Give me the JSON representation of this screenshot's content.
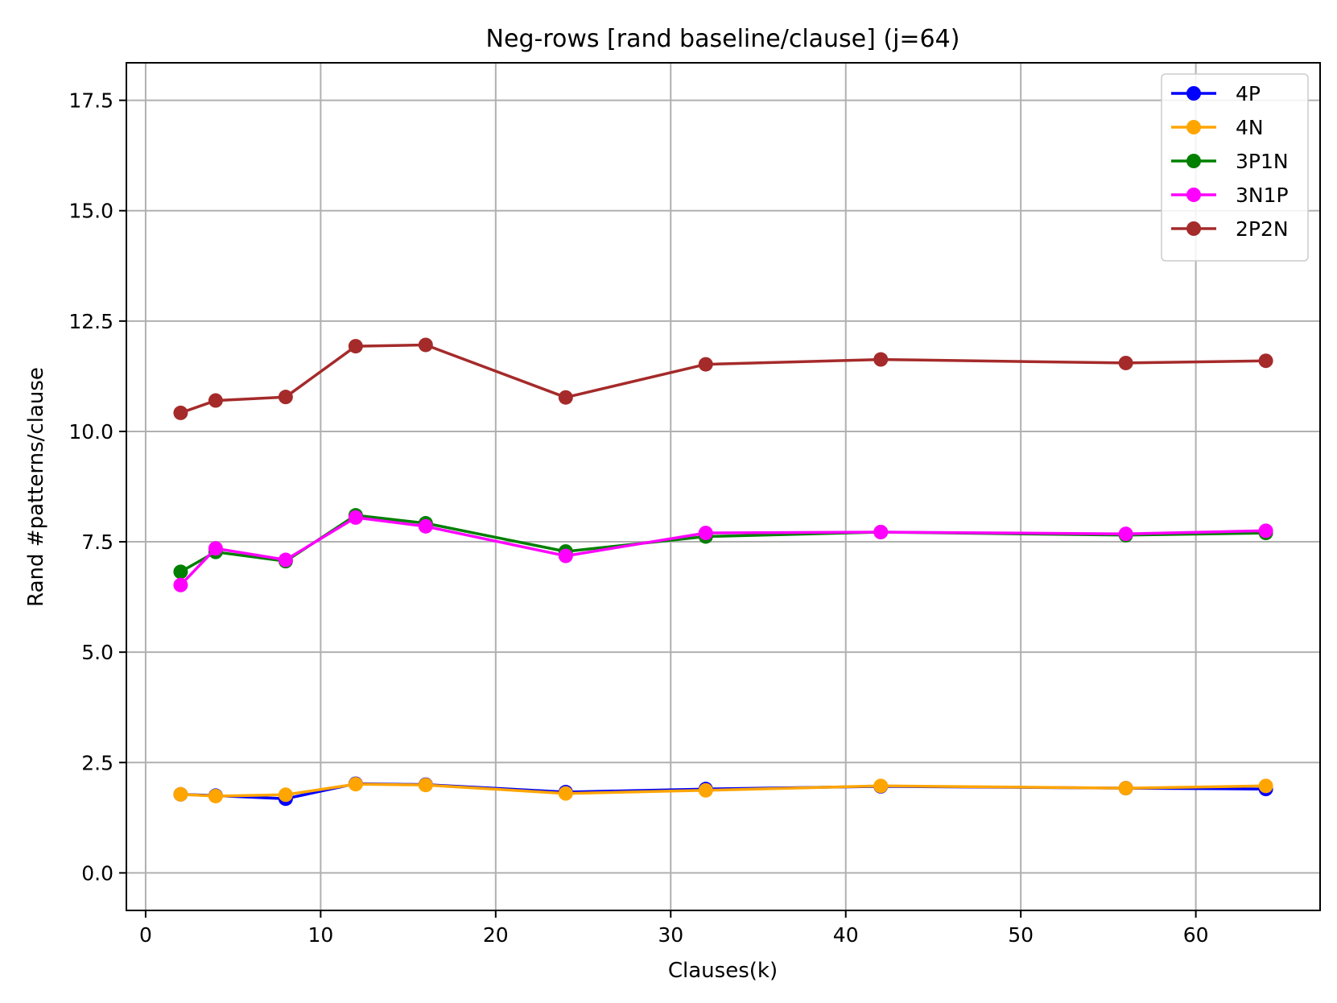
{
  "chart_data": {
    "type": "line",
    "title": "Neg-rows [rand baseline/clause] (j=64)",
    "xlabel": "Clauses(k)",
    "ylabel": "Rand #patterns/clause",
    "xlim": [
      -1.1,
      67.1
    ],
    "ylim": [
      -0.85,
      18.35
    ],
    "xticks": [
      0,
      10,
      20,
      30,
      40,
      50,
      60
    ],
    "xtick_labels": [
      "0",
      "10",
      "20",
      "30",
      "40",
      "50",
      "60"
    ],
    "yticks": [
      0.0,
      2.5,
      5.0,
      7.5,
      10.0,
      12.5,
      15.0,
      17.5
    ],
    "ytick_labels": [
      "0.0",
      "2.5",
      "5.0",
      "7.5",
      "10.0",
      "12.5",
      "15.0",
      "17.5"
    ],
    "grid": true,
    "legend_position": "top-right",
    "x": [
      2,
      4,
      8,
      12,
      16,
      24,
      32,
      42,
      56,
      64
    ],
    "series": [
      {
        "name": "4P",
        "color": "#0000ff",
        "values": [
          1.78,
          1.75,
          1.68,
          2.02,
          2.0,
          1.83,
          1.9,
          1.96,
          1.92,
          1.9
        ]
      },
      {
        "name": "4N",
        "color": "#ffa500",
        "values": [
          1.78,
          1.74,
          1.77,
          2.01,
          1.99,
          1.8,
          1.87,
          1.97,
          1.92,
          1.97
        ]
      },
      {
        "name": "3P1N",
        "color": "#008000",
        "values": [
          6.82,
          7.27,
          7.06,
          8.1,
          7.92,
          7.28,
          7.62,
          7.72,
          7.65,
          7.7
        ]
      },
      {
        "name": "3N1P",
        "color": "#ff00ff",
        "values": [
          6.52,
          7.35,
          7.09,
          8.05,
          7.85,
          7.18,
          7.7,
          7.72,
          7.68,
          7.75
        ]
      },
      {
        "name": "2P2N",
        "color": "#a52a2a",
        "values": [
          10.42,
          10.7,
          10.78,
          11.93,
          11.96,
          10.77,
          11.52,
          11.63,
          11.55,
          11.6
        ]
      }
    ]
  }
}
